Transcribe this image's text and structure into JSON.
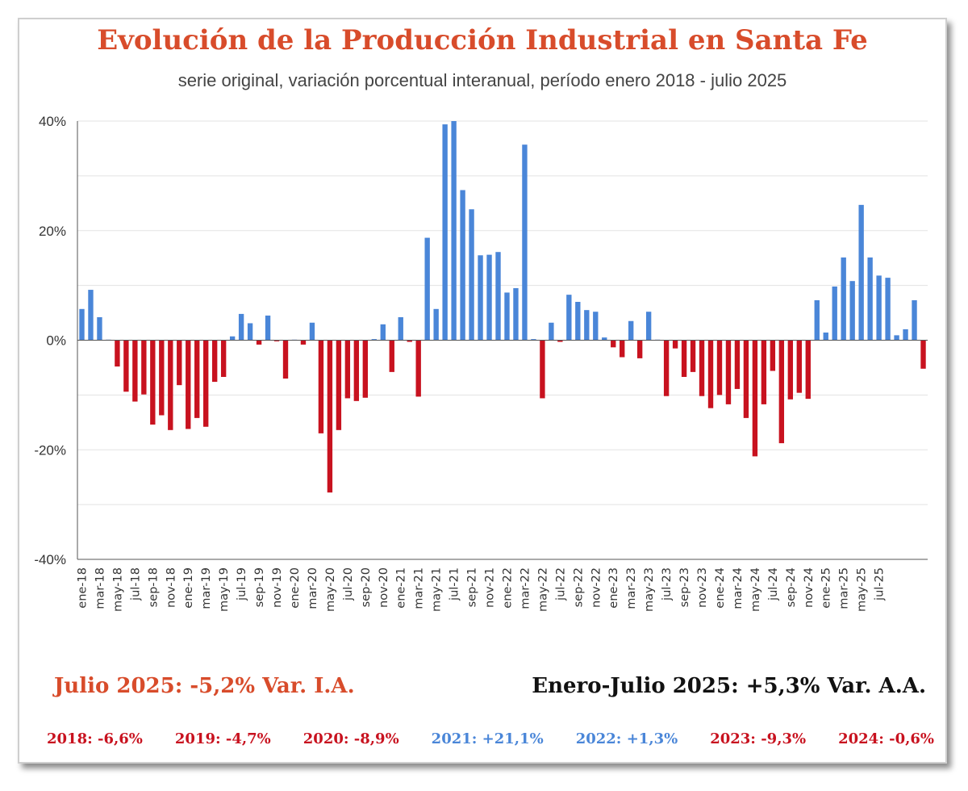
{
  "colors": {
    "title": "#d84c2b",
    "positive": "#4a86d8",
    "negative": "#c8121f",
    "summary_left": "#d84c2b",
    "summary_right": "#111111",
    "grid": "#e3e3e3"
  },
  "footer": {
    "summary_left": "Julio 2025: -5,2% Var. I.A.",
    "summary_right": "Enero-Julio 2025: +5,3% Var. A.A.",
    "years": [
      {
        "label": "2018: -6,6%",
        "sign": "negative"
      },
      {
        "label": "2019: -4,7%",
        "sign": "negative"
      },
      {
        "label": "2020: -8,9%",
        "sign": "negative"
      },
      {
        "label": "2021: +21,1%",
        "sign": "positive"
      },
      {
        "label": "2022: +1,3%",
        "sign": "positive"
      },
      {
        "label": "2023: -9,3%",
        "sign": "negative"
      },
      {
        "label": "2024: -0,6%",
        "sign": "negative"
      }
    ]
  },
  "chart_data": {
    "type": "bar",
    "title": "Evolución de la Producción Industrial en Santa Fe",
    "subtitle": "serie original, variación porcentual interanual, período enero 2018 - julio 2025",
    "ylim": [
      -40,
      40
    ],
    "yticks": [
      40,
      20,
      0,
      -20,
      -40
    ],
    "ytick_labels": [
      "40%",
      "20%",
      "0%",
      "-20%",
      "-40%"
    ],
    "grid": true,
    "xtick_labels": [
      "ene-18",
      "mar-18",
      "may-18",
      "jul-18",
      "sep-18",
      "nov-18",
      "ene-19",
      "mar-19",
      "may-19",
      "jul-19",
      "sep-19",
      "nov-19",
      "ene-20",
      "mar-20",
      "may-20",
      "jul-20",
      "sep-20",
      "nov-20",
      "ene-21",
      "mar-21",
      "may-21",
      "jul-21",
      "sep-21",
      "nov-21",
      "ene-22",
      "mar-22",
      "may-22",
      "jul-22",
      "sep-22",
      "nov-22",
      "ene-23",
      "mar-23",
      "may-23",
      "jul-23",
      "sep-23",
      "nov-23",
      "ene-24",
      "mar-24",
      "may-24",
      "jul-24",
      "sep-24",
      "nov-24",
      "ene-25",
      "mar-25",
      "may-25",
      "jul-25"
    ],
    "values": [
      5.7,
      9.2,
      4.2,
      0.1,
      -4.8,
      -9.4,
      -11.2,
      -9.9,
      -15.4,
      -13.7,
      -16.4,
      -8.2,
      -16.2,
      -14.2,
      -15.8,
      -7.6,
      -6.7,
      0.7,
      4.8,
      3.1,
      -0.8,
      4.5,
      -0.2,
      -7.0,
      0.1,
      -0.8,
      3.2,
      -17.0,
      -27.8,
      -16.4,
      -10.6,
      -11.1,
      -10.5,
      0.2,
      2.9,
      -5.8,
      4.2,
      -0.3,
      -10.3,
      18.7,
      5.7,
      39.4,
      40.0,
      27.4,
      23.9,
      15.5,
      15.6,
      16.1,
      8.7,
      9.5,
      35.7,
      0.2,
      -10.6,
      3.2,
      -0.3,
      8.3,
      7.0,
      5.5,
      5.2,
      0.5,
      -1.3,
      -3.1,
      3.5,
      -3.3,
      5.2,
      0.1,
      -10.2,
      -1.5,
      -6.7,
      -5.8,
      -10.2,
      -12.4,
      -10.0,
      -11.7,
      -8.9,
      -14.2,
      -21.2,
      -11.7,
      -5.6,
      -18.8,
      -10.8,
      -9.6,
      -10.7,
      7.3,
      1.4,
      9.8,
      15.1,
      10.8,
      24.7,
      15.1,
      11.8,
      11.4,
      0.9,
      2.0,
      7.3,
      -5.2
    ]
  }
}
